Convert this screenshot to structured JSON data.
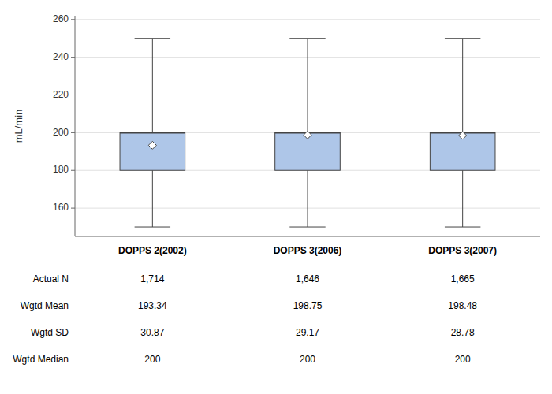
{
  "chart_data": {
    "type": "box",
    "y_label": "mL/min",
    "categories": [
      "DOPPS 2(2002)",
      "DOPPS 3(2006)",
      "DOPPS 3(2007)"
    ],
    "boxes": [
      {
        "q1": 180,
        "median": 200,
        "q3": 200,
        "whisker_low": 150,
        "whisker_high": 250,
        "mean": 193.34
      },
      {
        "q1": 180,
        "median": 200,
        "q3": 200,
        "whisker_low": 150,
        "whisker_high": 250,
        "mean": 198.75
      },
      {
        "q1": 180,
        "median": 200,
        "q3": 200,
        "whisker_low": 150,
        "whisker_high": 250,
        "mean": 198.48
      }
    ],
    "table_rows": [
      {
        "label": "Actual N",
        "values": [
          "1,714",
          "1,646",
          "1,665"
        ]
      },
      {
        "label": "Wgtd Mean",
        "values": [
          "193.34",
          "198.75",
          "198.48"
        ]
      },
      {
        "label": "Wgtd SD",
        "values": [
          "30.87",
          "29.17",
          "28.78"
        ]
      },
      {
        "label": "Wgtd Median",
        "values": [
          "200",
          "200",
          "200"
        ]
      }
    ],
    "ylim": [
      145,
      262
    ],
    "yticks": [
      160,
      180,
      200,
      220,
      240,
      260
    ],
    "grid": true,
    "color": "#aec6e8"
  }
}
